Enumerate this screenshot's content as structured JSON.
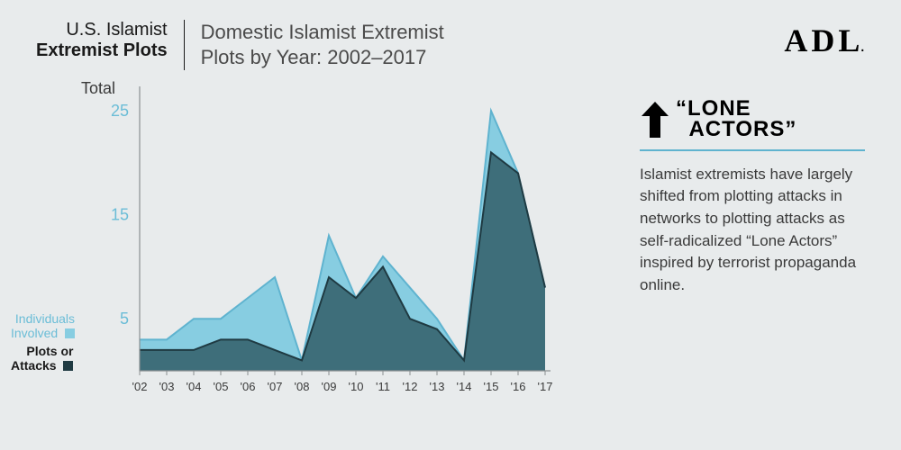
{
  "header": {
    "category_l1": "U.S. Islamist",
    "category_l2": "Extremist Plots",
    "title_l1": "Domestic Islamist Extremist",
    "title_l2": "Plots by Year: 2002–2017"
  },
  "logo": {
    "text": "ADL"
  },
  "chart": {
    "type": "area",
    "total_label": "Total",
    "background_color": "#e8ebec",
    "axis_color": "#8a8f91",
    "ylim": [
      0,
      27
    ],
    "yticks": [
      5,
      15,
      25
    ],
    "ytick_color": "#6bbdd7",
    "ytick_fontsize": 18,
    "xlabels": [
      "'02",
      "'03",
      "'04",
      "'05",
      "'06",
      "'07",
      "'08",
      "'09",
      "'10",
      "'11",
      "'12",
      "'13",
      "'14",
      "'15",
      "'16",
      "'17"
    ],
    "xtick_color": "#3a3a3a",
    "xtick_fontsize": 13,
    "series": {
      "individuals": {
        "label_l1": "Individuals",
        "label_l2": "Involved",
        "color": "#87cde1",
        "stroke": "#5fb3cf",
        "stroke_width": 2,
        "values": [
          3,
          3,
          5,
          5,
          7,
          9,
          1,
          13,
          7,
          11,
          8,
          5,
          1,
          25,
          19,
          8
        ]
      },
      "plots": {
        "label_l1": "Plots or",
        "label_l2": "Attacks",
        "color": "#3e6e7a",
        "stroke": "#1f3a42",
        "stroke_width": 2,
        "values": [
          2,
          2,
          2,
          3,
          3,
          2,
          1,
          9,
          7,
          10,
          5,
          4,
          1,
          21,
          19,
          8
        ]
      }
    },
    "legend": {
      "individuals_swatch": "#87cde1",
      "plots_swatch": "#1f3a42"
    }
  },
  "sidebar": {
    "arrow_color": "#000000",
    "headline_l1": "“LONE",
    "headline_l2": "  ACTORS”",
    "rule_color": "#5fb3cf",
    "body": "Islamist extremists have largely shifted from plotting attacks in networks to plotting attacks as self-radicalized “Lone Actors” inspired by terrorist propaganda online."
  }
}
